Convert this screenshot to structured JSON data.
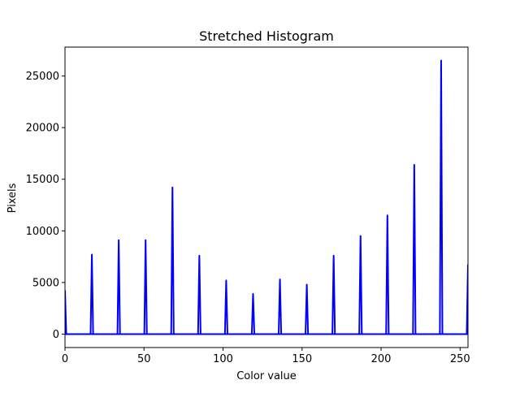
{
  "chart_data": {
    "type": "line",
    "title": "Stretched Histogram",
    "xlabel": "Color value",
    "ylabel": "Pixels",
    "xlim": [
      0,
      255
    ],
    "ylim": [
      -1300,
      27800
    ],
    "xticks": [
      0,
      50,
      100,
      150,
      200,
      250
    ],
    "yticks": [
      0,
      5000,
      10000,
      15000,
      20000,
      25000
    ],
    "grid": false,
    "legend": "none",
    "line_color": "#0000ff",
    "series": [
      {
        "x": [
          0,
          17,
          34,
          51,
          68,
          85,
          102,
          119,
          136,
          153,
          170,
          187,
          204,
          221,
          238,
          255
        ],
        "values": [
          4200,
          7700,
          9100,
          9100,
          14200,
          7600,
          5200,
          3900,
          5300,
          4800,
          7600,
          9500,
          11500,
          16400,
          26500,
          6700
        ]
      }
    ]
  }
}
